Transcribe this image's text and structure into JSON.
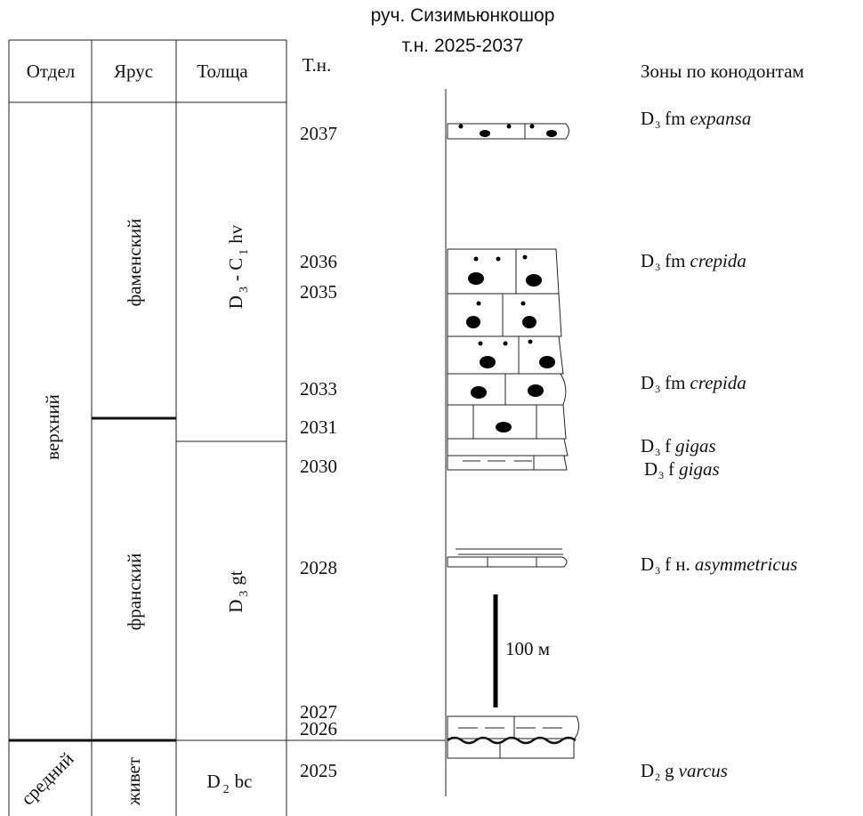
{
  "header": {
    "title": "руч. Сизимьюнкошор",
    "subtitle": "т.н. 2025-2037"
  },
  "table": {
    "headers": [
      "Отдел",
      "Ярус",
      "Толща",
      "Т.н."
    ],
    "series": [
      "верхний",
      "средний"
    ],
    "stages": [
      "фаменский",
      "франский",
      "живет"
    ],
    "units": [
      [
        "D",
        "3",
        "- C",
        "1",
        "hv"
      ],
      [
        "D",
        "3",
        "gt"
      ],
      [
        "D",
        "2",
        "bc"
      ]
    ],
    "points": [
      "2037",
      "2036",
      "2035",
      "2033",
      "2031",
      "2030",
      "2028",
      "2027",
      "2026",
      "2025"
    ]
  },
  "zones": {
    "header": "Зоны по конодонтам",
    "items": [
      {
        "system": "D",
        "index": "3",
        "stage": "fm",
        "taxon": "expansa"
      },
      {
        "system": "D",
        "index": "3",
        "stage": "fm",
        "taxon": "crepida"
      },
      {
        "system": "D",
        "index": "3",
        "stage": "fm",
        "taxon": "crepida"
      },
      {
        "system": "D",
        "index": "3",
        "stage": "f",
        "taxon": "gigas"
      },
      {
        "system": "D",
        "index": "3",
        "stage": "f",
        "taxon": "gigas"
      },
      {
        "system": "D",
        "index": "3",
        "stage": "f н.",
        "taxon": "asymmetricus"
      },
      {
        "system": "D",
        "index": "2",
        "stage": "g",
        "taxon": "varcus"
      }
    ]
  },
  "scale": {
    "label": "100 м"
  }
}
